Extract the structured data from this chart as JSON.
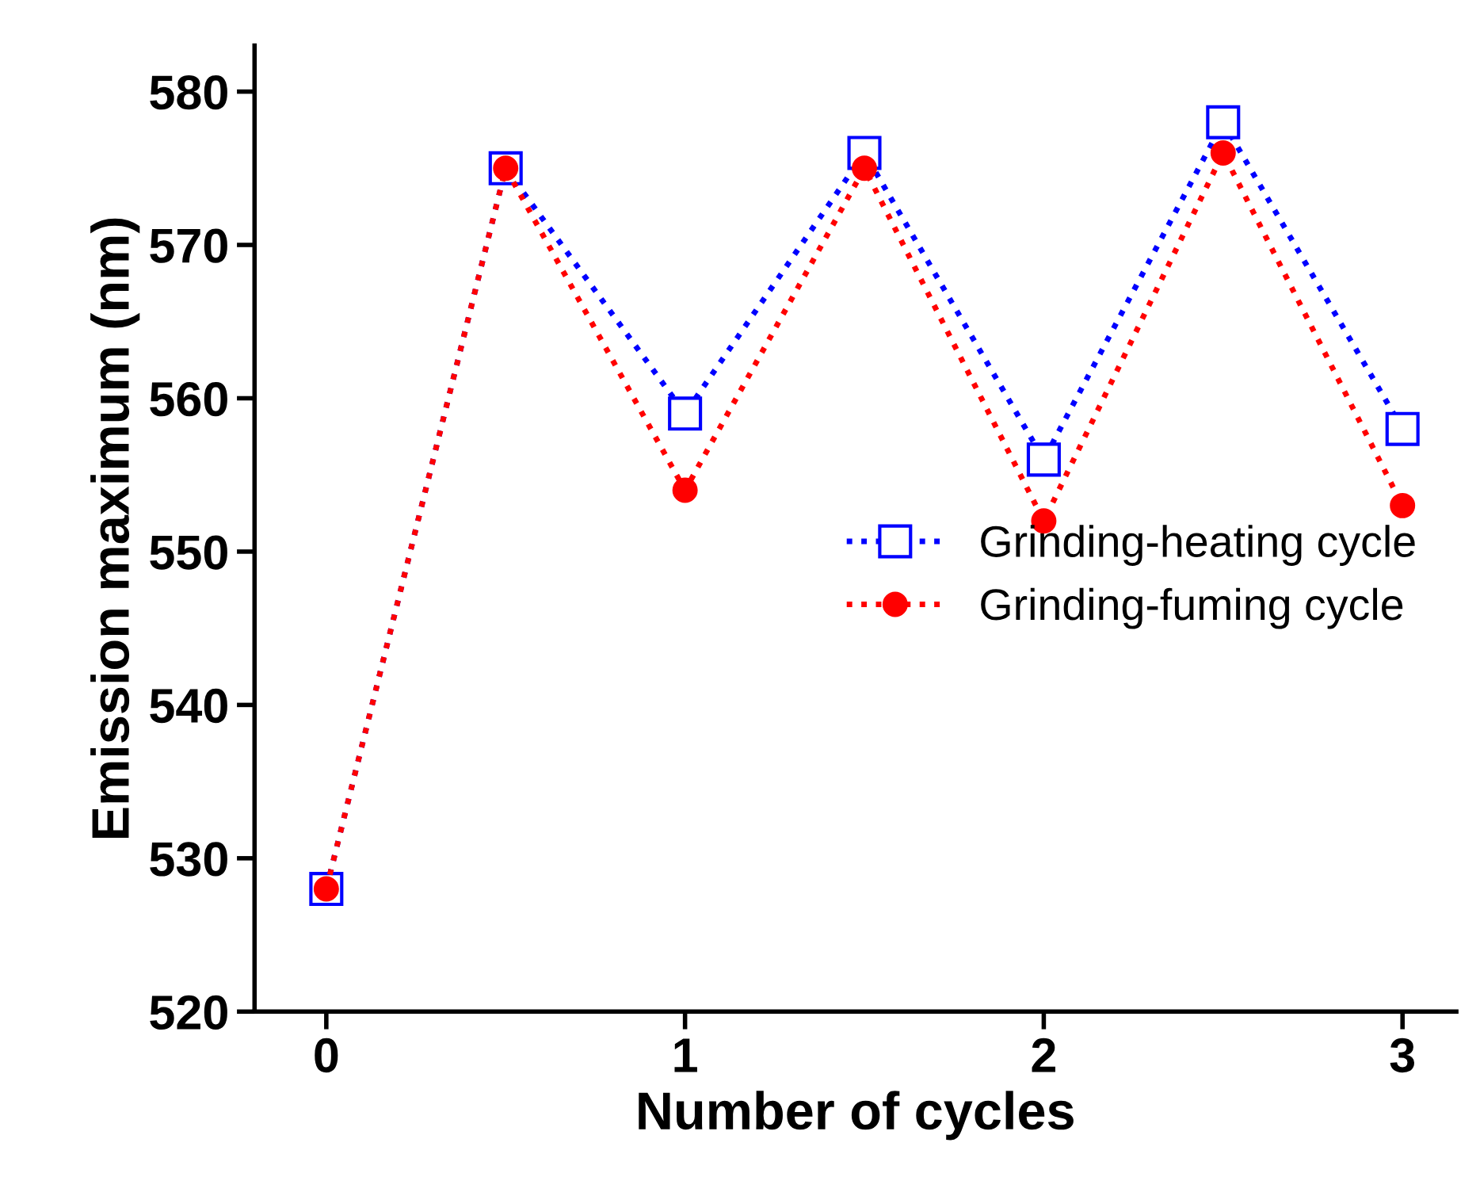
{
  "chart_data": {
    "type": "line",
    "xlabel": "Number of cycles",
    "ylabel": "Emission maximum (nm)",
    "x": [
      0,
      0.5,
      1,
      1.5,
      2,
      2.5,
      3
    ],
    "series": [
      {
        "name": "Grinding-heating cycle",
        "color": "#0000ff",
        "marker": "square",
        "line_style": "dotted",
        "values": [
          528,
          575,
          559,
          576,
          556,
          578,
          558
        ]
      },
      {
        "name": "Grinding-fuming cycle",
        "color": "#ff0000",
        "marker": "circle",
        "line_style": "dotted",
        "values": [
          528,
          575,
          554,
          575,
          552,
          576,
          553
        ]
      }
    ],
    "xlim": [
      -0.2,
      3.15
    ],
    "ylim": [
      520,
      583
    ],
    "xticks": [
      0,
      1,
      2,
      3
    ],
    "yticks": [
      520,
      530,
      540,
      550,
      560,
      570,
      580
    ],
    "grid": false,
    "legend": "right"
  }
}
